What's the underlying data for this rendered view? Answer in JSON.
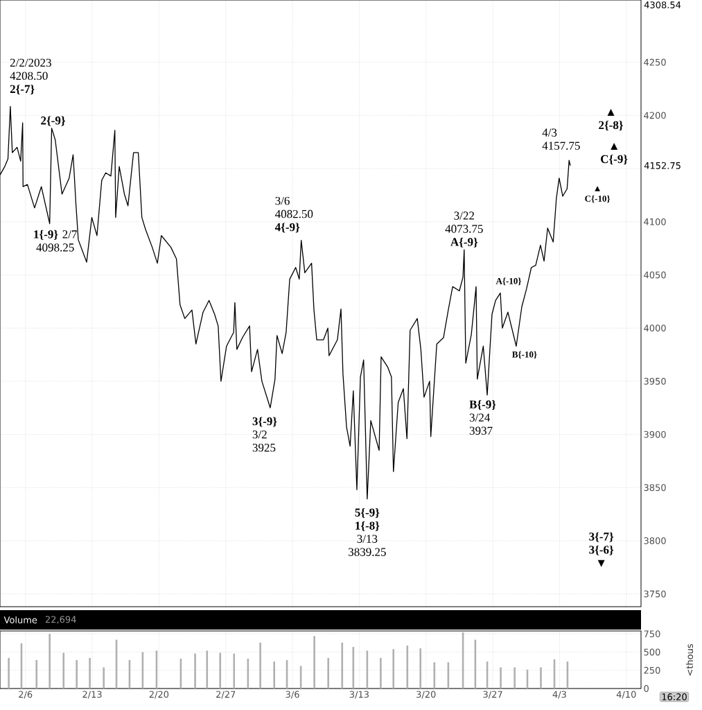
{
  "chart_data": [
    {
      "type": "line",
      "color": "#000000",
      "grid": true,
      "tick_labels": "y",
      "xlim": [
        "2023-02-03T08:00",
        "2023-04-11T13:00"
      ],
      "ylim": [
        3738,
        4308.54
      ],
      "xticks": [
        {
          "value": "2023-02-06",
          "label": null
        },
        {
          "value": "2023-02-13",
          "label": null
        },
        {
          "value": "2023-02-20",
          "label": null
        },
        {
          "value": "2023-02-27",
          "label": null
        },
        {
          "value": "2023-03-06",
          "label": null
        },
        {
          "value": "2023-03-13",
          "label": null
        },
        {
          "value": "2023-03-20",
          "label": null
        },
        {
          "value": "2023-03-27",
          "label": null
        },
        {
          "value": "2023-04-03",
          "label": null
        },
        {
          "value": "2023-04-10",
          "label": null
        }
      ],
      "yticks": [
        3750,
        3800,
        3850,
        3900,
        3950,
        4000,
        4050,
        4100,
        {
          "value": 4150,
          "label": null
        },
        4200,
        4250
      ],
      "x": [
        "2023-02-03T08:00",
        "2023-02-03T20:00",
        "2023-02-04T04:00",
        "2023-02-04T10:00",
        "2023-02-04T15:00",
        "2023-02-05T03:00",
        "2023-02-05T12:00",
        "2023-02-05T17:00",
        "2023-02-05T18:00",
        "2023-02-06T05:00",
        "2023-02-06T23:00",
        "2023-02-07T16:00",
        "2023-02-08T13:00",
        "2023-02-08T18:00",
        "2023-02-09T03:00",
        "2023-02-09T20:00",
        "2023-02-10T14:00",
        "2023-02-11T00:00",
        "2023-02-11T07:00",
        "2023-02-11T13:00",
        "2023-02-12T10:00",
        "2023-02-12T23:00",
        "2023-02-13T12:00",
        "2023-02-14T00:00",
        "2023-02-14T10:00",
        "2023-02-14T23:00",
        "2023-02-15T09:00",
        "2023-02-15T11:00",
        "2023-02-15T20:00",
        "2023-02-16T09:00",
        "2023-02-16T18:00",
        "2023-02-17T08:00",
        "2023-02-17T20:00",
        "2023-02-18T05:00",
        "2023-02-18T14:00",
        "2023-02-19T07:00",
        "2023-02-19T20:00",
        "2023-02-20T06:00",
        "2023-02-21T06:00",
        "2023-02-21T20:00",
        "2023-02-22T05:00",
        "2023-02-22T17:00",
        "2023-02-23T11:00",
        "2023-02-23T21:00",
        "2023-02-24T15:00",
        "2023-02-25T06:00",
        "2023-02-25T20:00",
        "2023-02-26T05:00",
        "2023-02-26T12:00",
        "2023-02-27T02:00",
        "2023-02-27T20:00",
        "2023-02-27T23:00",
        "2023-02-28T04:00",
        "2023-02-28T18:00",
        "2023-03-01T12:00",
        "2023-03-01T17:00",
        "2023-03-02T08:00",
        "2023-03-02T19:00",
        "2023-03-03T16:00",
        "2023-03-04T04:00",
        "2023-03-04T09:00",
        "2023-03-04T22:00",
        "2023-03-05T08:00",
        "2023-03-05T17:00",
        "2023-03-06T08:00",
        "2023-03-06T17:00",
        "2023-03-06T22:00",
        "2023-03-07T07:00",
        "2023-03-08T00:00",
        "2023-03-08T06:00",
        "2023-03-08T13:00",
        "2023-03-09T06:00",
        "2023-03-09T17:00",
        "2023-03-09T20:00",
        "2023-03-10T17:00",
        "2023-03-11T02:00",
        "2023-03-11T07:00",
        "2023-03-11T16:00",
        "2023-03-12T01:00",
        "2023-03-12T09:00",
        "2023-03-12T18:00",
        "2023-03-13T03:00",
        "2023-03-13T11:00",
        "2023-03-13T20:00",
        "2023-03-14T05:00",
        "2023-03-15T02:00",
        "2023-03-15T07:00",
        "2023-03-16T00:00",
        "2023-03-16T09:00",
        "2023-03-16T14:00",
        "2023-03-17T02:00",
        "2023-03-17T15:00",
        "2023-03-18T00:00",
        "2023-03-18T08:00",
        "2023-03-19T02:00",
        "2023-03-19T11:00",
        "2023-03-19T19:00",
        "2023-03-20T09:00",
        "2023-03-20T12:00",
        "2023-03-21T03:00",
        "2023-03-21T20:00",
        "2023-03-22T08:00",
        "2023-03-22T19:00",
        "2023-03-23T12:00",
        "2023-03-23T21:00",
        "2023-03-24T00:00",
        "2023-03-24T04:00",
        "2023-03-24T18:00",
        "2023-03-25T06:00",
        "2023-03-25T09:00",
        "2023-03-26T00:00",
        "2023-03-26T10:00",
        "2023-03-26T22:00",
        "2023-03-27T07:00",
        "2023-03-27T19:00",
        "2023-03-28T00:00",
        "2023-03-28T14:00",
        "2023-03-29T11:00",
        "2023-03-30T01:00",
        "2023-03-30T13:00",
        "2023-03-31T01:00",
        "2023-03-31T12:00",
        "2023-04-01T00:00",
        "2023-04-01T09:00",
        "2023-04-01T18:00",
        "2023-04-02T08:00",
        "2023-04-02T16:00",
        "2023-04-02T23:00",
        "2023-04-03T08:00",
        "2023-04-03T19:00",
        "2023-04-04T00:00",
        "2023-04-04T03:00"
      ],
      "values": [
        4144,
        4152,
        4159,
        4208.5,
        4165,
        4170,
        4157,
        4193,
        4133,
        4135,
        4113,
        4133,
        4098.25,
        4188,
        4177,
        4126,
        4141,
        4163,
        4117,
        4083,
        4062,
        4104,
        4087,
        4139,
        4146,
        4143,
        4186,
        4104,
        4152,
        4126,
        4115,
        4165,
        4165,
        4104,
        4093,
        4076,
        4061,
        4087,
        4076,
        4065,
        4022,
        4009,
        4017,
        3985,
        4015,
        4026,
        4013,
        4002,
        3950,
        3983,
        3996,
        4024,
        3980,
        3991,
        4002,
        3959,
        3980,
        3950,
        3925,
        3952,
        3993,
        3976,
        3996,
        4046,
        4057,
        4046,
        4082.5,
        4052,
        4061,
        4017,
        3989,
        3989,
        4000,
        3974,
        3989,
        4018,
        3957,
        3907,
        3889,
        3941,
        3848,
        3954,
        3970,
        3839.25,
        3913,
        3885,
        3973,
        3963,
        3954,
        3865,
        3930,
        3943,
        3896,
        3998,
        4009,
        3980,
        3935,
        3950,
        3898,
        3985,
        3991,
        4017,
        4039,
        4035,
        4048,
        4073.75,
        3967,
        3994,
        4039,
        3952,
        3983,
        3937,
        4013,
        4026,
        4033,
        4000,
        4015,
        3983,
        4020,
        4037,
        4057,
        4059,
        4078,
        4063,
        4094,
        4081,
        4122,
        4141,
        4124,
        4131,
        4157.75,
        4152.75
      ],
      "annotations": [
        {
          "text": "2/2/2023 4208.50 **2{-7}**",
          "x": "2023-02-04T10:00",
          "y": 4208.5
        },
        {
          "text": "**2{-9}**",
          "x": "2023-02-08T18:00",
          "y": 4188
        },
        {
          "text": "**1{-9}** 2/7 4098.25",
          "x": "2023-02-08T13:00",
          "y": 4098.25
        },
        {
          "text": "**3{-9}** 3/2 3925",
          "x": "2023-03-03T16:00",
          "y": 3925
        },
        {
          "text": "3/6 4082.50 **4{-9}**",
          "x": "2023-03-06T22:00",
          "y": 4082.5
        },
        {
          "text": "**5{-9} 1{-8}** 3/13 3839.25",
          "x": "2023-03-13T20:00",
          "y": 3839.25
        },
        {
          "text": "3/22 4073.75 **A{-9}**",
          "x": "2023-03-24T00:00",
          "y": 4073.75
        },
        {
          "text": "**B{-9}** 3/24 3937",
          "x": "2023-03-26T10:00",
          "y": 3937
        },
        {
          "text": "**A{-10}**",
          "x": "2023-03-27T19:00",
          "y": 4033
        },
        {
          "text": "**B{-10}**",
          "x": "2023-03-29T11:00",
          "y": 3983
        },
        {
          "text": "4/3 4157.75",
          "x": "2023-04-04T00:00",
          "y": 4157.75
        },
        "▲ **2{-8}**",
        "▲ **C{-9}**",
        "▲ **C{-10}**",
        "**3{-7} 3{-6}** ▼",
        "4308.54",
        "4152.75"
      ]
    },
    {
      "type": "bar",
      "title": "Volume",
      "subtitle": "22,694",
      "ylabel": "<thous",
      "color": "#b0b0b0",
      "grid": true,
      "xlim": [
        "2023-02-03T08:00",
        "2023-04-11T13:00"
      ],
      "ylim": [
        0,
        790
      ],
      "xticks": [
        {
          "value": "2023-02-06",
          "label": "2/6"
        },
        {
          "value": "2023-02-13",
          "label": "2/13"
        },
        {
          "value": "2023-02-20",
          "label": "2/20"
        },
        {
          "value": "2023-02-27",
          "label": "2/27"
        },
        {
          "value": "2023-03-06",
          "label": "3/6"
        },
        {
          "value": "2023-03-13",
          "label": "3/13"
        },
        {
          "value": "2023-03-20",
          "label": "3/20"
        },
        {
          "value": "2023-03-27",
          "label": "3/27"
        },
        {
          "value": "2023-04-03",
          "label": "4/3"
        },
        {
          "value": "2023-04-10",
          "label": "4/10"
        }
      ],
      "yticks": [
        0,
        250,
        500,
        750
      ],
      "x": [
        "2023-02-04T06:00",
        "2023-02-05T14:00",
        "2023-02-07T04:00",
        "2023-02-08T13:00",
        "2023-02-10T00:00",
        "2023-02-11T09:00",
        "2023-02-12T18:00",
        "2023-02-14T05:00",
        "2023-02-15T13:00",
        "2023-02-16T22:00",
        "2023-02-18T07:00",
        "2023-02-19T18:00",
        "2023-02-22T07:00",
        "2023-02-23T19:00",
        "2023-02-25T01:00",
        "2023-02-26T10:00",
        "2023-02-27T21:00",
        "2023-03-01T08:00",
        "2023-03-02T15:00",
        "2023-03-04T02:00",
        "2023-03-05T10:00",
        "2023-03-06T21:00",
        "2023-03-08T07:00",
        "2023-03-09T18:00",
        "2023-03-11T05:00",
        "2023-03-12T09:00",
        "2023-03-13T20:00",
        "2023-03-15T06:00",
        "2023-03-16T14:00",
        "2023-03-18T01:00",
        "2023-03-19T10:00",
        "2023-03-20T21:00",
        "2023-03-22T08:00",
        "2023-03-23T21:00",
        "2023-03-25T04:00",
        "2023-03-26T10:00",
        "2023-03-27T20:00",
        "2023-03-29T07:00",
        "2023-03-30T15:00",
        "2023-04-01T01:00",
        "2023-04-02T11:00",
        "2023-04-03T20:00"
      ],
      "values": [
        420,
        620,
        390,
        750,
        490,
        390,
        420,
        290,
        670,
        390,
        500,
        520,
        410,
        480,
        520,
        490,
        480,
        410,
        630,
        370,
        390,
        310,
        720,
        420,
        630,
        570,
        520,
        420,
        540,
        590,
        550,
        360,
        360,
        770,
        670,
        370,
        290,
        290,
        260,
        290,
        400,
        370
      ],
      "annotations": [
        "16:20"
      ]
    }
  ]
}
